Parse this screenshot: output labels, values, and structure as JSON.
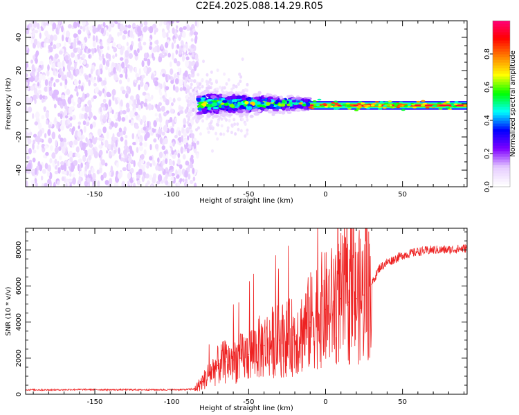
{
  "title": "C2E4.2025.088.14.29.R05",
  "chart_data": [
    {
      "type": "heatmap",
      "xlabel": "Height of straight line (km)",
      "ylabel": "Frequency (Hz)",
      "xlim": [
        -195,
        92
      ],
      "ylim": [
        -50,
        50
      ],
      "xticks": [
        -150,
        -100,
        -50,
        0,
        50
      ],
      "yticks": [
        -40,
        -20,
        0,
        20,
        40
      ],
      "colorbar": {
        "label": "Normalized spectral amplitude",
        "range": [
          0.0,
          1.0
        ],
        "ticks": [
          0.0,
          0.2,
          0.4,
          0.6,
          0.8
        ],
        "colormap": [
          "#ffffff",
          "#e6ccff",
          "#7f00ff",
          "#0000ff",
          "#00ffff",
          "#00ff00",
          "#ffff00",
          "#ff8000",
          "#ff0000",
          "#ff0080"
        ]
      },
      "regions": [
        {
          "x_range": [
            -195,
            -83
          ],
          "description_value": "broadband noise",
          "mean_amplitude": 0.08
        },
        {
          "x_range": [
            -83,
            -10
          ],
          "center_freq_hz": 0,
          "bandwidth_hz": 8,
          "peak_amplitude": 0.7
        },
        {
          "x_range": [
            -10,
            92
          ],
          "center_freq_hz": -1,
          "bandwidth_hz": 3,
          "peak_amplitude": 0.95
        }
      ]
    },
    {
      "type": "line",
      "xlabel": "Height of straight line (km)",
      "ylabel": "SNR (10 * v/v)",
      "xlim": [
        -195,
        92
      ],
      "ylim": [
        0,
        9200
      ],
      "xticks": [
        -150,
        -100,
        -50,
        0,
        50
      ],
      "yticks": [
        0,
        2000,
        4000,
        6000,
        8000
      ],
      "color": "#ee2222",
      "x": [
        -195,
        -180,
        -160,
        -140,
        -120,
        -100,
        -90,
        -85,
        -80,
        -75,
        -70,
        -65,
        -60,
        -55,
        -50,
        -45,
        -40,
        -35,
        -30,
        -25,
        -20,
        -15,
        -10,
        -5,
        0,
        5,
        10,
        15,
        20,
        25,
        30,
        35,
        40,
        50,
        60,
        70,
        80,
        92
      ],
      "values": [
        250,
        240,
        260,
        250,
        250,
        250,
        260,
        300,
        700,
        1200,
        1600,
        1800,
        1900,
        2000,
        2200,
        2500,
        2700,
        2900,
        3000,
        3100,
        3200,
        3500,
        4000,
        4600,
        4700,
        4900,
        5300,
        5100,
        5300,
        5500,
        6100,
        7000,
        7300,
        7700,
        7900,
        8000,
        8000,
        8100
      ]
    }
  ]
}
